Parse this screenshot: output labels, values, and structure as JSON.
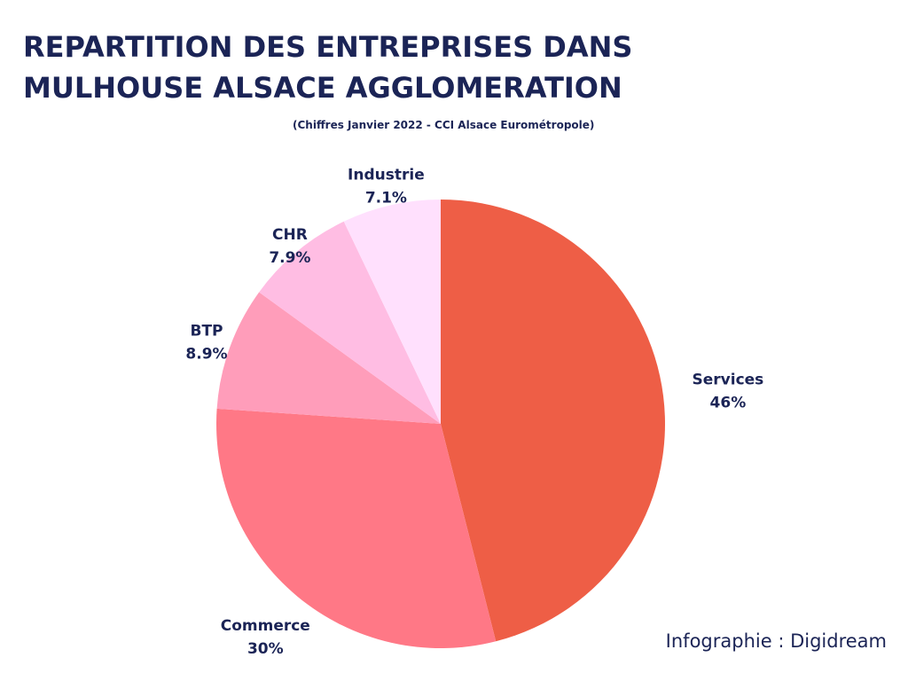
{
  "header": {
    "title_line1": "REPARTITION DES ENTREPRISES DANS",
    "title_line2": "MULHOUSE ALSACE AGGLOMERATION",
    "subtitle": "(Chiffres Janvier 2022 - CCI Alsace Eurométropole)"
  },
  "footer": {
    "credit": "Infographie : Digidream"
  },
  "chart_data": {
    "type": "pie",
    "title": "REPARTITION DES ENTREPRISES DANS MULHOUSE ALSACE AGGLOMERATION",
    "subtitle": "(Chiffres Janvier 2022 - CCI Alsace Eurométropole)",
    "start": "12 o'clock",
    "direction": "clockwise",
    "slices": [
      {
        "label": "Services",
        "value": 46,
        "display": "46%",
        "color": "#ee5e46"
      },
      {
        "label": "Commerce",
        "value": 30,
        "display": "30%",
        "color": "#ff7886"
      },
      {
        "label": "BTP",
        "value": 8.9,
        "display": "8.9%",
        "color": "#ff9dba"
      },
      {
        "label": "CHR",
        "value": 7.9,
        "display": "7.9%",
        "color": "#ffbde3"
      },
      {
        "label": "Industrie",
        "value": 7.1,
        "display": "7.1%",
        "color": "#ffe0fd"
      }
    ]
  }
}
